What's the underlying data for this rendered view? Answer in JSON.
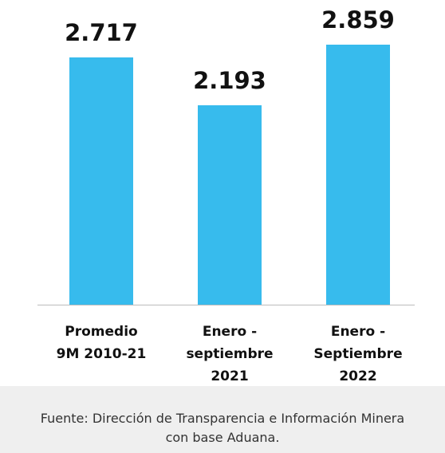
{
  "chart_data": {
    "type": "bar",
    "categories": [
      "Promedio 9M 2010-21",
      "Enero - septiembre 2021",
      "Enero - Septiembre 2022"
    ],
    "values": [
      2.717,
      2.193,
      2.859
    ],
    "color": "#37bbed"
  },
  "source": "Fuente: Dirección de Transparencia e Información Minera con base Aduana."
}
